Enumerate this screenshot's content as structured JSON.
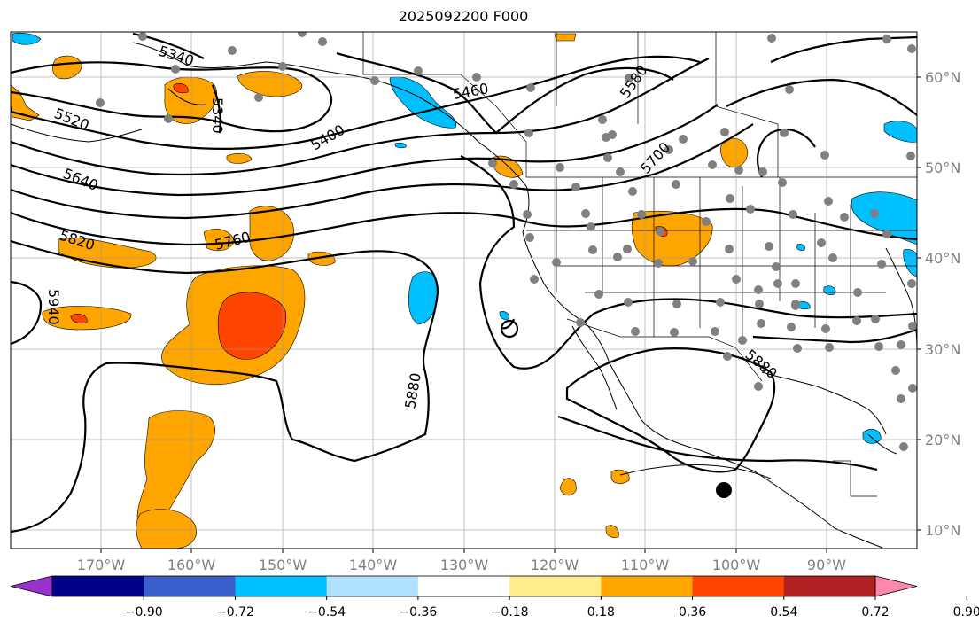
{
  "title": "2025092200 F000",
  "map": {
    "lon_labels": [
      "170°W",
      "160°W",
      "150°W",
      "140°W",
      "130°W",
      "120°W",
      "110°W",
      "100°W",
      "90°W"
    ],
    "lat_labels": [
      "60°N",
      "50°N",
      "40°N",
      "30°N",
      "20°N",
      "10°N"
    ],
    "contour_labels": [
      {
        "text": "5340"
      },
      {
        "text": "5340"
      },
      {
        "text": "5460"
      },
      {
        "text": "5580"
      },
      {
        "text": "5520"
      },
      {
        "text": "5400"
      },
      {
        "text": "5640"
      },
      {
        "text": "5700"
      },
      {
        "text": "5820"
      },
      {
        "text": "5760"
      },
      {
        "text": "5940"
      },
      {
        "text": "5880"
      },
      {
        "text": "5880"
      }
    ]
  },
  "colorbar": {
    "ticks": [
      "−0.90",
      "−0.72",
      "−0.54",
      "−0.36",
      "−0.18",
      "0.18",
      "0.36",
      "0.54",
      "0.72",
      "0.90"
    ],
    "colors": [
      "#9932cc",
      "#00008b",
      "#3a5fcd",
      "#00bfff",
      "#b0e2ff",
      "#ffffff",
      "#ffec8b",
      "#ffa500",
      "#ff4500",
      "#b22222",
      "#ff88aa"
    ]
  }
}
